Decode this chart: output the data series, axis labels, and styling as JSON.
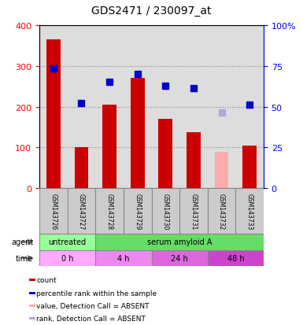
{
  "title": "GDS2471 / 230097_at",
  "samples": [
    "GSM143726",
    "GSM143727",
    "GSM143728",
    "GSM143729",
    "GSM143730",
    "GSM143731",
    "GSM143732",
    "GSM143733"
  ],
  "bar_values": [
    365,
    100,
    205,
    270,
    170,
    138,
    null,
    105
  ],
  "bar_absent_values": [
    null,
    null,
    null,
    null,
    null,
    null,
    90,
    null
  ],
  "bar_color": "#cc0000",
  "bar_absent_color": "#ffaaaa",
  "rank_values": [
    293,
    208,
    262,
    280,
    252,
    245,
    null,
    206
  ],
  "rank_absent_values": [
    null,
    null,
    null,
    null,
    null,
    null,
    186,
    null
  ],
  "rank_color": "#0000cc",
  "rank_absent_color": "#aaaadd",
  "ylim_left": [
    0,
    400
  ],
  "ylim_right": [
    0,
    100
  ],
  "yticks_left": [
    0,
    100,
    200,
    300,
    400
  ],
  "yticks_right": [
    0,
    25,
    50,
    75,
    100
  ],
  "ytick_labels_right": [
    "0",
    "25",
    "50",
    "75",
    "100%"
  ],
  "agent_groups": [
    {
      "label": "untreated",
      "start": 0,
      "end": 2,
      "color": "#99ff99"
    },
    {
      "label": "serum amyloid A",
      "start": 2,
      "end": 8,
      "color": "#66dd66"
    }
  ],
  "time_groups": [
    {
      "label": "0 h",
      "start": 0,
      "end": 2,
      "color": "#ffaaff"
    },
    {
      "label": "4 h",
      "start": 2,
      "end": 4,
      "color": "#ee88ee"
    },
    {
      "label": "24 h",
      "start": 4,
      "end": 6,
      "color": "#dd66dd"
    },
    {
      "label": "48 h",
      "start": 6,
      "end": 8,
      "color": "#cc44cc"
    }
  ],
  "bar_width": 0.5,
  "grid_color": "#888888",
  "background_color": "#ffffff",
  "plot_bg_color": "#dddddd",
  "legend_items": [
    {
      "label": "count",
      "color": "#cc0000",
      "marker": "s"
    },
    {
      "label": "percentile rank within the sample",
      "color": "#0000cc",
      "marker": "s"
    },
    {
      "label": "value, Detection Call = ABSENT",
      "color": "#ffaaaa",
      "marker": "s"
    },
    {
      "label": "rank, Detection Call = ABSENT",
      "color": "#aaaadd",
      "marker": "s"
    }
  ]
}
